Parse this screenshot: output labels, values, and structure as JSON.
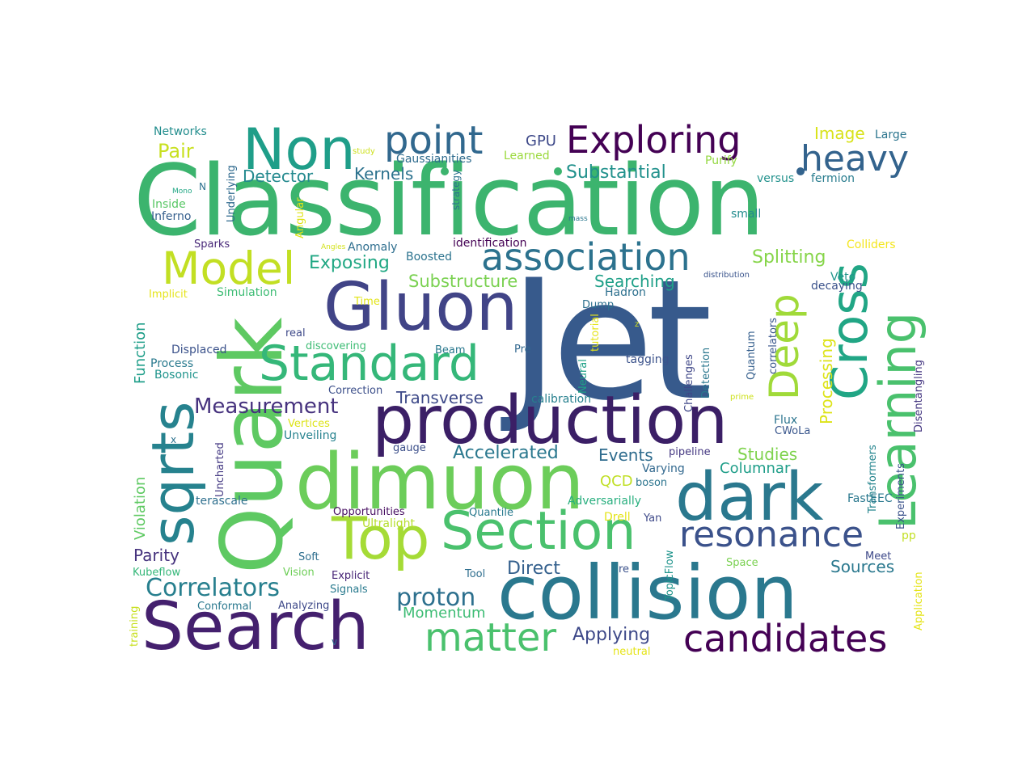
{
  "word_cloud": {
    "words": [
      {
        "text": "Jet",
        "color": "#375a8c"
      },
      {
        "text": "Classification",
        "color": "#3cb46e"
      },
      {
        "text": "production",
        "color": "#3b1f66"
      },
      {
        "text": "collision",
        "color": "#2a788e"
      },
      {
        "text": "dimuon",
        "color": "#6ccd5a"
      },
      {
        "text": "Search",
        "color": "#44206e"
      },
      {
        "text": "Quark",
        "color": "#5ec962"
      },
      {
        "text": "Gluon",
        "color": "#414487"
      },
      {
        "text": "dark",
        "color": "#2a788e"
      },
      {
        "text": "Section",
        "color": "#4ac16d"
      },
      {
        "text": "Top",
        "color": "#a5db36"
      },
      {
        "text": "Non",
        "color": "#1f9e89"
      },
      {
        "text": "Standard",
        "color": "#35b779"
      },
      {
        "text": "Learning",
        "color": "#4ac16d"
      },
      {
        "text": "Cross",
        "color": "#21a685"
      },
      {
        "text": "sqrts",
        "color": "#26828e"
      },
      {
        "text": "Model",
        "color": "#c2df23"
      },
      {
        "text": "association",
        "color": "#2c728e"
      },
      {
        "text": "candidates",
        "color": "#440154"
      },
      {
        "text": "resonance",
        "color": "#3b528b"
      },
      {
        "text": "matter",
        "color": "#4ac16d"
      },
      {
        "text": "Exploring",
        "color": "#440154"
      },
      {
        "text": "point",
        "color": "#31688e"
      },
      {
        "text": "heavy",
        "color": "#33638d"
      },
      {
        "text": "Deep",
        "color": "#a0da39"
      },
      {
        "text": "Correlators",
        "color": "#277f8e"
      },
      {
        "text": "Measurement",
        "color": "#46327e"
      },
      {
        "text": "proton",
        "color": "#2d708e"
      },
      {
        "text": "Substructure",
        "color": "#7ad151"
      },
      {
        "text": "Transverse",
        "color": "#3e4a89"
      },
      {
        "text": "Accelerated",
        "color": "#2a788e"
      },
      {
        "text": "Exposing",
        "color": "#22a884"
      },
      {
        "text": "Detector",
        "color": "#23898e"
      },
      {
        "text": "Kernels",
        "color": "#2c728e"
      },
      {
        "text": "Substantial",
        "color": "#21918c"
      },
      {
        "text": "Splitting",
        "color": "#86d549"
      },
      {
        "text": "Searching",
        "color": "#1fa088"
      },
      {
        "text": "Processing",
        "color": "#dde318"
      },
      {
        "text": "Momentum",
        "color": "#3dbc74"
      },
      {
        "text": "Applying",
        "color": "#3e4989"
      },
      {
        "text": "Direct",
        "color": "#34608d"
      },
      {
        "text": "Events",
        "color": "#2f6c8e"
      },
      {
        "text": "Studies",
        "color": "#7fd34e"
      },
      {
        "text": "Columnar",
        "color": "#1f9e89"
      },
      {
        "text": "Sources",
        "color": "#2a788e"
      },
      {
        "text": "Pair",
        "color": "#c8e020"
      },
      {
        "text": "GPU",
        "color": "#3e4989"
      },
      {
        "text": "Image",
        "color": "#d8e219"
      },
      {
        "text": "Parity",
        "color": "#46337e"
      },
      {
        "text": "Violation",
        "color": "#5ec962"
      },
      {
        "text": "Function",
        "color": "#1f9e89"
      },
      {
        "text": "QCD",
        "color": "#c0df25"
      },
      {
        "text": "Hadron",
        "color": "#2d708e"
      },
      {
        "text": "Networks",
        "color": "#228d8d"
      },
      {
        "text": "Large",
        "color": "#2b758e"
      },
      {
        "text": "versus",
        "color": "#21918c"
      },
      {
        "text": "fermion",
        "color": "#287c8e"
      },
      {
        "text": "Purify",
        "color": "#93d741"
      },
      {
        "text": "small",
        "color": "#228c8d"
      },
      {
        "text": "Colliders",
        "color": "#f4e61e"
      },
      {
        "text": "Veto",
        "color": "#1f958b"
      },
      {
        "text": "decaying",
        "color": "#3b528b"
      },
      {
        "text": "identification",
        "color": "#440154"
      },
      {
        "text": "Anomaly",
        "color": "#2e6e8e"
      },
      {
        "text": "Boosted",
        "color": "#2c738e"
      },
      {
        "text": "Gaussianities",
        "color": "#2f6c8e"
      },
      {
        "text": "Learned",
        "color": "#9bd93c"
      },
      {
        "text": "study",
        "color": "#cde11d"
      },
      {
        "text": "strategy",
        "color": "#2c728e"
      },
      {
        "text": "Angular",
        "color": "#dfe318"
      },
      {
        "text": "Underlying",
        "color": "#306a8e"
      },
      {
        "text": "Inside",
        "color": "#58c765"
      },
      {
        "text": "Mono",
        "color": "#22a785"
      },
      {
        "text": "N",
        "color": "#2c718e"
      },
      {
        "text": "Inferno",
        "color": "#355f8d"
      },
      {
        "text": "Sparks",
        "color": "#482878"
      },
      {
        "text": "Angles",
        "color": "#d2e21b"
      },
      {
        "text": "mass",
        "color": "#2a778e"
      },
      {
        "text": "distribution",
        "color": "#3a548c"
      },
      {
        "text": "Implicit",
        "color": "#e5e419"
      },
      {
        "text": "Simulation",
        "color": "#3dbc74"
      },
      {
        "text": "Time",
        "color": "#e2e418"
      },
      {
        "text": "Dump",
        "color": "#2d708e"
      },
      {
        "text": "real",
        "color": "#3e4989"
      },
      {
        "text": "Displaced",
        "color": "#3b528b"
      },
      {
        "text": "discovering",
        "color": "#3dbc74"
      },
      {
        "text": "Process",
        "color": "#297a8e"
      },
      {
        "text": "Bosonic",
        "color": "#1f948c"
      },
      {
        "text": "Beam",
        "color": "#2a788e"
      },
      {
        "text": "Pre",
        "color": "#31678e"
      },
      {
        "text": "tutorial",
        "color": "#e5e419"
      },
      {
        "text": "Neural",
        "color": "#1fa187"
      },
      {
        "text": "tagging",
        "color": "#3b528b"
      },
      {
        "text": "Challenges",
        "color": "#3f4788"
      },
      {
        "text": "Detection",
        "color": "#2a778e"
      },
      {
        "text": "Quantum",
        "color": "#355f8d"
      },
      {
        "text": "correlators",
        "color": "#39568c"
      },
      {
        "text": "Disentangling",
        "color": "#453781"
      },
      {
        "text": "Correction",
        "color": "#3c4f8a"
      },
      {
        "text": "calibration",
        "color": "#27808e"
      },
      {
        "text": "prime",
        "color": "#cde11d"
      },
      {
        "text": "Transformers",
        "color": "#25858e"
      },
      {
        "text": "Flux",
        "color": "#2b748e"
      },
      {
        "text": "CWoLa",
        "color": "#39568c"
      },
      {
        "text": "Vertices",
        "color": "#dde318"
      },
      {
        "text": "Unveiling",
        "color": "#26828e"
      },
      {
        "text": "x",
        "color": "#2c728e"
      },
      {
        "text": "Uncharted",
        "color": "#443983"
      },
      {
        "text": "gauge",
        "color": "#3c4f8a"
      },
      {
        "text": "pipeline",
        "color": "#453882"
      },
      {
        "text": "Varying",
        "color": "#31688e"
      },
      {
        "text": "boson",
        "color": "#2b748e"
      },
      {
        "text": "Experiments",
        "color": "#3b528b"
      },
      {
        "text": "Application",
        "color": "#e5e419"
      },
      {
        "text": "terascale",
        "color": "#2e6f8e"
      },
      {
        "text": "Opportunities",
        "color": "#470e61"
      },
      {
        "text": "Quantile",
        "color": "#297a8e"
      },
      {
        "text": "Adversarially",
        "color": "#29af7f"
      },
      {
        "text": "FastEEC",
        "color": "#2a788e"
      },
      {
        "text": "Ultralight",
        "color": "#b5de2b"
      },
      {
        "text": "Drell",
        "color": "#e5e419"
      },
      {
        "text": "Yan",
        "color": "#3e4989"
      },
      {
        "text": "pp",
        "color": "#c2df23"
      },
      {
        "text": "TopicFlow",
        "color": "#1f948c"
      },
      {
        "text": "Kubeflow",
        "color": "#35b779"
      },
      {
        "text": "Soft",
        "color": "#2e6e8e"
      },
      {
        "text": "Vision",
        "color": "#6ece58"
      },
      {
        "text": "Explicit",
        "color": "#482677"
      },
      {
        "text": "Signals",
        "color": "#297a8e"
      },
      {
        "text": "Tool",
        "color": "#2e6e8e"
      },
      {
        "text": "re",
        "color": "#3b528b"
      },
      {
        "text": "Space",
        "color": "#7ad151"
      },
      {
        "text": "Meet",
        "color": "#3e4989"
      },
      {
        "text": "Conformal",
        "color": "#2a788e"
      },
      {
        "text": "Analyzing",
        "color": "#3e4989"
      },
      {
        "text": "training",
        "color": "#c8e020"
      },
      {
        "text": "v",
        "color": "#2f6c8e"
      },
      {
        "text": "neutral",
        "color": "#e5e419"
      },
      {
        "text": "z",
        "color": "#d5e21a"
      }
    ]
  }
}
